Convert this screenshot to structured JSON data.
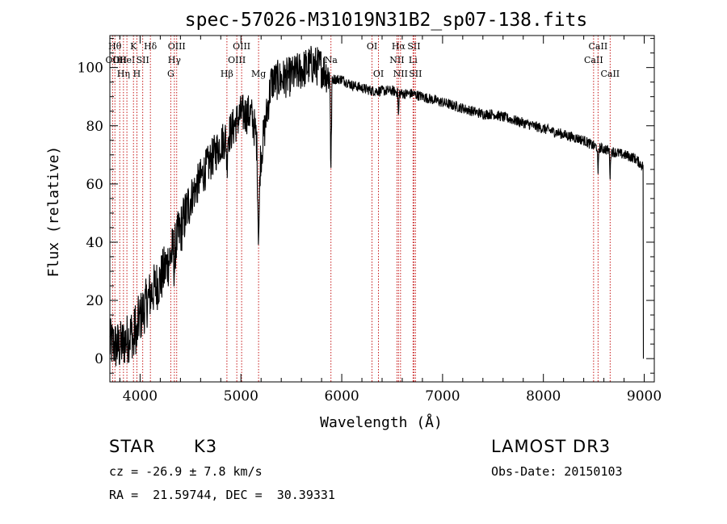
{
  "chart_data": {
    "type": "line",
    "title": "spec-57026-M31019N31B2_sp07-138.fits",
    "xlabel": "Wavelength (Å)",
    "ylabel": "Flux (relative)",
    "xlim": [
      3700,
      9100
    ],
    "ylim": [
      -8,
      111
    ],
    "xticks": [
      4000,
      5000,
      6000,
      7000,
      8000,
      9000
    ],
    "yticks": [
      0,
      20,
      40,
      60,
      80,
      100
    ],
    "continuum": [
      [
        3700,
        5
      ],
      [
        3800,
        4
      ],
      [
        3900,
        8
      ],
      [
        4000,
        14
      ],
      [
        4100,
        22
      ],
      [
        4200,
        27
      ],
      [
        4300,
        35
      ],
      [
        4400,
        44
      ],
      [
        4500,
        55
      ],
      [
        4600,
        62
      ],
      [
        4700,
        68
      ],
      [
        4800,
        74
      ],
      [
        4900,
        78
      ],
      [
        5000,
        84
      ],
      [
        5100,
        84
      ],
      [
        5200,
        70
      ],
      [
        5300,
        95
      ],
      [
        5400,
        96
      ],
      [
        5500,
        97
      ],
      [
        5600,
        99
      ],
      [
        5700,
        101
      ],
      [
        5800,
        100
      ],
      [
        5900,
        96
      ],
      [
        6000,
        96
      ],
      [
        6100,
        94
      ],
      [
        6200,
        93
      ],
      [
        6300,
        92
      ],
      [
        6400,
        92
      ],
      [
        6500,
        92
      ],
      [
        6600,
        91
      ],
      [
        6700,
        91
      ],
      [
        6800,
        90
      ],
      [
        6900,
        89
      ],
      [
        7000,
        88
      ],
      [
        7100,
        87
      ],
      [
        7200,
        86
      ],
      [
        7300,
        85
      ],
      [
        7400,
        84
      ],
      [
        7500,
        84
      ],
      [
        7600,
        83
      ],
      [
        7700,
        82
      ],
      [
        7800,
        81
      ],
      [
        7900,
        80
      ],
      [
        8000,
        79
      ],
      [
        8100,
        78
      ],
      [
        8200,
        77
      ],
      [
        8300,
        76
      ],
      [
        8400,
        75
      ],
      [
        8500,
        73
      ],
      [
        8600,
        72
      ],
      [
        8700,
        71
      ],
      [
        8800,
        70
      ],
      [
        8900,
        69
      ],
      [
        8990,
        66
      ]
    ],
    "absorption_dips": [
      {
        "x": 5893,
        "depth": 32,
        "width": 6
      },
      {
        "x": 5175,
        "depth": 30,
        "width": 12
      },
      {
        "x": 8542,
        "depth": 10,
        "width": 5
      },
      {
        "x": 8662,
        "depth": 9,
        "width": 5
      },
      {
        "x": 6563,
        "depth": 8,
        "width": 5
      },
      {
        "x": 4861,
        "depth": 10,
        "width": 6
      },
      {
        "x": 4340,
        "depth": 8,
        "width": 6
      },
      {
        "x": 3968,
        "depth": 6,
        "width": 8
      },
      {
        "x": 3934,
        "depth": 6,
        "width": 8
      }
    ],
    "spectral_lines": [
      {
        "x": 3727,
        "label": "OII",
        "row": 2
      },
      {
        "x": 3750,
        "label": "Hθ",
        "row": 1
      },
      {
        "x": 3798,
        "label": "OII",
        "row": 2
      },
      {
        "x": 3835,
        "label": "Hη",
        "row": 3
      },
      {
        "x": 3869,
        "label": "HeI",
        "row": 2
      },
      {
        "x": 3934,
        "label": "K",
        "row": 1
      },
      {
        "x": 3968,
        "label": "H",
        "row": 3
      },
      {
        "x": 4026,
        "label": "SII",
        "row": 2
      },
      {
        "x": 4102,
        "label": "Hδ",
        "row": 1
      },
      {
        "x": 4304,
        "label": "G",
        "row": 3
      },
      {
        "x": 4340,
        "label": "Hγ",
        "row": 2
      },
      {
        "x": 4363,
        "label": "OIII",
        "row": 1
      },
      {
        "x": 4861,
        "label": "Hβ",
        "row": 3
      },
      {
        "x": 4959,
        "label": "OIII",
        "row": 2
      },
      {
        "x": 5007,
        "label": "OIII",
        "row": 1
      },
      {
        "x": 5175,
        "label": "Mg",
        "row": 3
      },
      {
        "x": 5893,
        "label": "Na",
        "row": 2
      },
      {
        "x": 6300,
        "label": "OI",
        "row": 1
      },
      {
        "x": 6364,
        "label": "OI",
        "row": 3
      },
      {
        "x": 6548,
        "label": "NII",
        "row": 2
      },
      {
        "x": 6563,
        "label": "Hα",
        "row": 1
      },
      {
        "x": 6583,
        "label": "NII",
        "row": 3
      },
      {
        "x": 6707,
        "label": "Li",
        "row": 2
      },
      {
        "x": 6716,
        "label": "SII",
        "row": 1
      },
      {
        "x": 6731,
        "label": "SII",
        "row": 3
      },
      {
        "x": 8498,
        "label": "CaII",
        "row": 2
      },
      {
        "x": 8542,
        "label": "CaII",
        "row": 1
      },
      {
        "x": 8662,
        "label": "CaII",
        "row": 3
      }
    ]
  },
  "info": {
    "object_class": "STAR",
    "subclass": "K3",
    "survey": "LAMOST DR3",
    "cz": "cz = -26.9 ± 7.8 km/s",
    "obs_date": "Obs-Date: 20150103",
    "coords": "RA =  21.59744, DEC =  30.39331"
  }
}
